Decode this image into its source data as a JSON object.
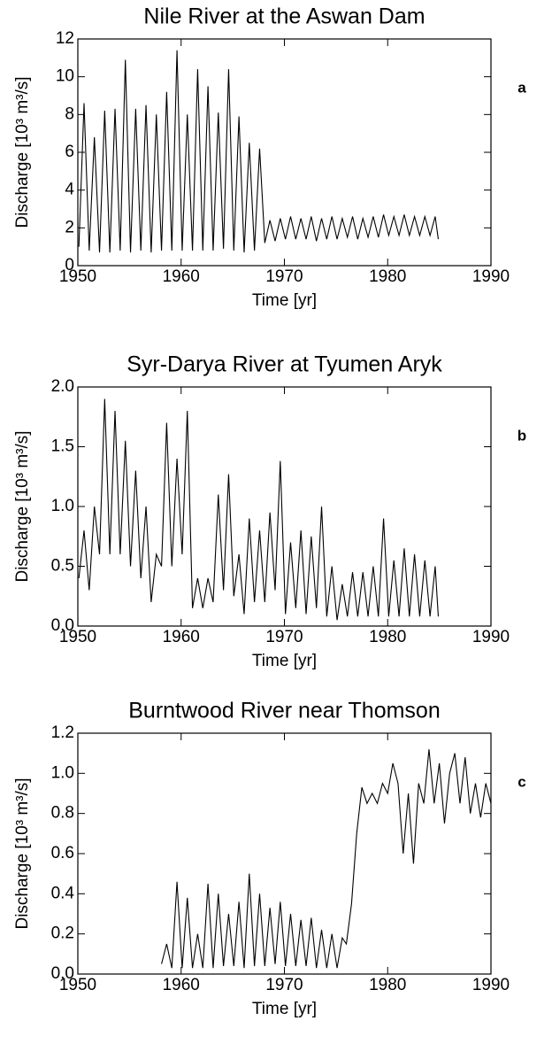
{
  "chart_data": [
    {
      "type": "line",
      "title": "Nile River at the Aswan Dam",
      "panel": "a",
      "xlabel": "Time [yr]",
      "ylabel": "Discharge [10³ m³/s]",
      "xlim": [
        1950,
        1990
      ],
      "xticks": [
        1950,
        1960,
        1970,
        1980,
        1990
      ],
      "ylim": [
        0,
        12
      ],
      "yticks": [
        0,
        2,
        4,
        6,
        8,
        10,
        12
      ],
      "color": "#000000",
      "x": [
        1950.1,
        1950.6,
        1951.1,
        1951.6,
        1952.1,
        1952.6,
        1953.1,
        1953.6,
        1954.1,
        1954.6,
        1955.1,
        1955.6,
        1956.1,
        1956.6,
        1957.1,
        1957.6,
        1958.1,
        1958.6,
        1959.1,
        1959.6,
        1960.1,
        1960.6,
        1961.1,
        1961.6,
        1962.1,
        1962.6,
        1963.1,
        1963.6,
        1964.1,
        1964.6,
        1965.1,
        1965.6,
        1966.1,
        1966.6,
        1967.1,
        1967.6,
        1968.1,
        1968.6,
        1969.1,
        1969.6,
        1970.1,
        1970.6,
        1971.1,
        1971.6,
        1972.1,
        1972.6,
        1973.1,
        1973.6,
        1974.1,
        1974.6,
        1975.1,
        1975.6,
        1976.1,
        1976.6,
        1977.1,
        1977.6,
        1978.1,
        1978.6,
        1979.1,
        1979.6,
        1980.1,
        1980.6,
        1981.1,
        1981.6,
        1982.1,
        1982.6,
        1983.1,
        1983.6,
        1984.1,
        1984.6,
        1984.9
      ],
      "values": [
        1.0,
        8.6,
        0.8,
        6.8,
        0.7,
        8.2,
        0.7,
        8.3,
        0.8,
        10.9,
        0.7,
        8.3,
        0.8,
        8.5,
        0.7,
        8.0,
        0.8,
        9.2,
        0.8,
        11.4,
        0.8,
        8.0,
        0.8,
        10.4,
        0.8,
        9.5,
        0.8,
        8.1,
        0.9,
        10.4,
        0.8,
        7.9,
        0.7,
        6.5,
        0.8,
        6.2,
        1.2,
        2.4,
        1.3,
        2.5,
        1.4,
        2.6,
        1.4,
        2.5,
        1.4,
        2.6,
        1.3,
        2.5,
        1.4,
        2.6,
        1.4,
        2.5,
        1.5,
        2.6,
        1.4,
        2.5,
        1.5,
        2.6,
        1.5,
        2.7,
        1.6,
        2.6,
        1.6,
        2.7,
        1.6,
        2.6,
        1.6,
        2.6,
        1.6,
        2.6,
        1.4
      ]
    },
    {
      "type": "line",
      "title": "Syr-Darya River at Tyumen Aryk",
      "panel": "b",
      "xlabel": "Time [yr]",
      "ylabel": "Discharge [10³ m³/s]",
      "xlim": [
        1950,
        1990
      ],
      "xticks": [
        1950,
        1960,
        1970,
        1980,
        1990
      ],
      "ylim": [
        0,
        2
      ],
      "yticks": [
        {
          "value": 0,
          "label": "0.0"
        },
        0.5,
        {
          "value": 1,
          "label": "1.0"
        },
        1.5,
        {
          "value": 2,
          "label": "2.0"
        }
      ],
      "color": "#000000",
      "x": [
        1950.1,
        1950.6,
        1951.1,
        1951.6,
        1952.1,
        1952.6,
        1953.1,
        1953.6,
        1954.1,
        1954.6,
        1955.1,
        1955.6,
        1956.1,
        1956.6,
        1957.1,
        1957.6,
        1958.1,
        1958.6,
        1959.1,
        1959.6,
        1960.1,
        1960.6,
        1961.1,
        1961.6,
        1962.1,
        1962.6,
        1963.1,
        1963.6,
        1964.1,
        1964.6,
        1965.1,
        1965.6,
        1966.1,
        1966.6,
        1967.1,
        1967.6,
        1968.1,
        1968.6,
        1969.1,
        1969.6,
        1970.1,
        1970.6,
        1971.1,
        1971.6,
        1972.1,
        1972.6,
        1973.1,
        1973.6,
        1974.1,
        1974.6,
        1975.1,
        1975.6,
        1976.1,
        1976.6,
        1977.1,
        1977.6,
        1978.1,
        1978.6,
        1979.1,
        1979.6,
        1980.1,
        1980.6,
        1981.1,
        1981.6,
        1982.1,
        1982.6,
        1983.1,
        1983.6,
        1984.1,
        1984.6,
        1984.9
      ],
      "values": [
        0.4,
        0.8,
        0.3,
        1.0,
        0.6,
        1.9,
        0.6,
        1.8,
        0.6,
        1.55,
        0.5,
        1.3,
        0.4,
        1.0,
        0.2,
        0.6,
        0.5,
        1.7,
        0.5,
        1.4,
        0.6,
        1.8,
        0.15,
        0.4,
        0.15,
        0.4,
        0.2,
        1.1,
        0.3,
        1.27,
        0.25,
        0.6,
        0.1,
        0.9,
        0.2,
        0.8,
        0.2,
        0.95,
        0.3,
        1.38,
        0.1,
        0.7,
        0.15,
        0.8,
        0.1,
        0.75,
        0.15,
        1.0,
        0.08,
        0.5,
        0.05,
        0.35,
        0.08,
        0.45,
        0.08,
        0.45,
        0.08,
        0.5,
        0.08,
        0.9,
        0.08,
        0.55,
        0.08,
        0.65,
        0.08,
        0.6,
        0.08,
        0.55,
        0.08,
        0.5,
        0.08
      ]
    },
    {
      "type": "line",
      "title": "Burntwood River near Thomson",
      "panel": "c",
      "xlabel": "Time [yr]",
      "ylabel": "Discharge [10³ m³/s]",
      "xlim": [
        1950,
        1990
      ],
      "xticks": [
        1950,
        1960,
        1970,
        1980,
        1990
      ],
      "ylim": [
        0,
        1.2
      ],
      "yticks": [
        {
          "value": 0,
          "label": "0.0"
        },
        0.2,
        0.4,
        0.6,
        0.8,
        {
          "value": 1,
          "label": "1.0"
        },
        1.2
      ],
      "color": "#000000",
      "x": [
        1958.1,
        1958.6,
        1959.1,
        1959.6,
        1960.1,
        1960.6,
        1961.1,
        1961.6,
        1962.1,
        1962.6,
        1963.1,
        1963.6,
        1964.1,
        1964.6,
        1965.1,
        1965.6,
        1966.1,
        1966.6,
        1967.1,
        1967.6,
        1968.1,
        1968.6,
        1969.1,
        1969.6,
        1970.1,
        1970.6,
        1971.1,
        1971.6,
        1972.1,
        1972.6,
        1973.1,
        1973.6,
        1974.1,
        1974.6,
        1975.1,
        1975.6,
        1976.0,
        1976.5,
        1977.0,
        1977.5,
        1978.0,
        1978.5,
        1979.0,
        1979.5,
        1980.0,
        1980.5,
        1981.0,
        1981.5,
        1982.0,
        1982.5,
        1983.0,
        1983.5,
        1984.0,
        1984.5,
        1985.0,
        1985.5,
        1986.0,
        1986.5,
        1987.0,
        1987.5,
        1988.0,
        1988.5,
        1989.0,
        1989.5,
        1990.0
      ],
      "values": [
        0.05,
        0.15,
        0.03,
        0.46,
        0.03,
        0.38,
        0.03,
        0.2,
        0.03,
        0.45,
        0.03,
        0.4,
        0.04,
        0.3,
        0.04,
        0.36,
        0.03,
        0.5,
        0.04,
        0.4,
        0.04,
        0.33,
        0.05,
        0.36,
        0.04,
        0.3,
        0.04,
        0.27,
        0.04,
        0.28,
        0.03,
        0.22,
        0.03,
        0.2,
        0.03,
        0.18,
        0.15,
        0.35,
        0.7,
        0.93,
        0.85,
        0.9,
        0.85,
        0.95,
        0.9,
        1.05,
        0.95,
        0.6,
        0.9,
        0.55,
        0.95,
        0.85,
        1.12,
        0.85,
        1.05,
        0.75,
        1.0,
        1.1,
        0.85,
        1.08,
        0.8,
        0.95,
        0.78,
        0.95,
        0.85
      ]
    }
  ]
}
